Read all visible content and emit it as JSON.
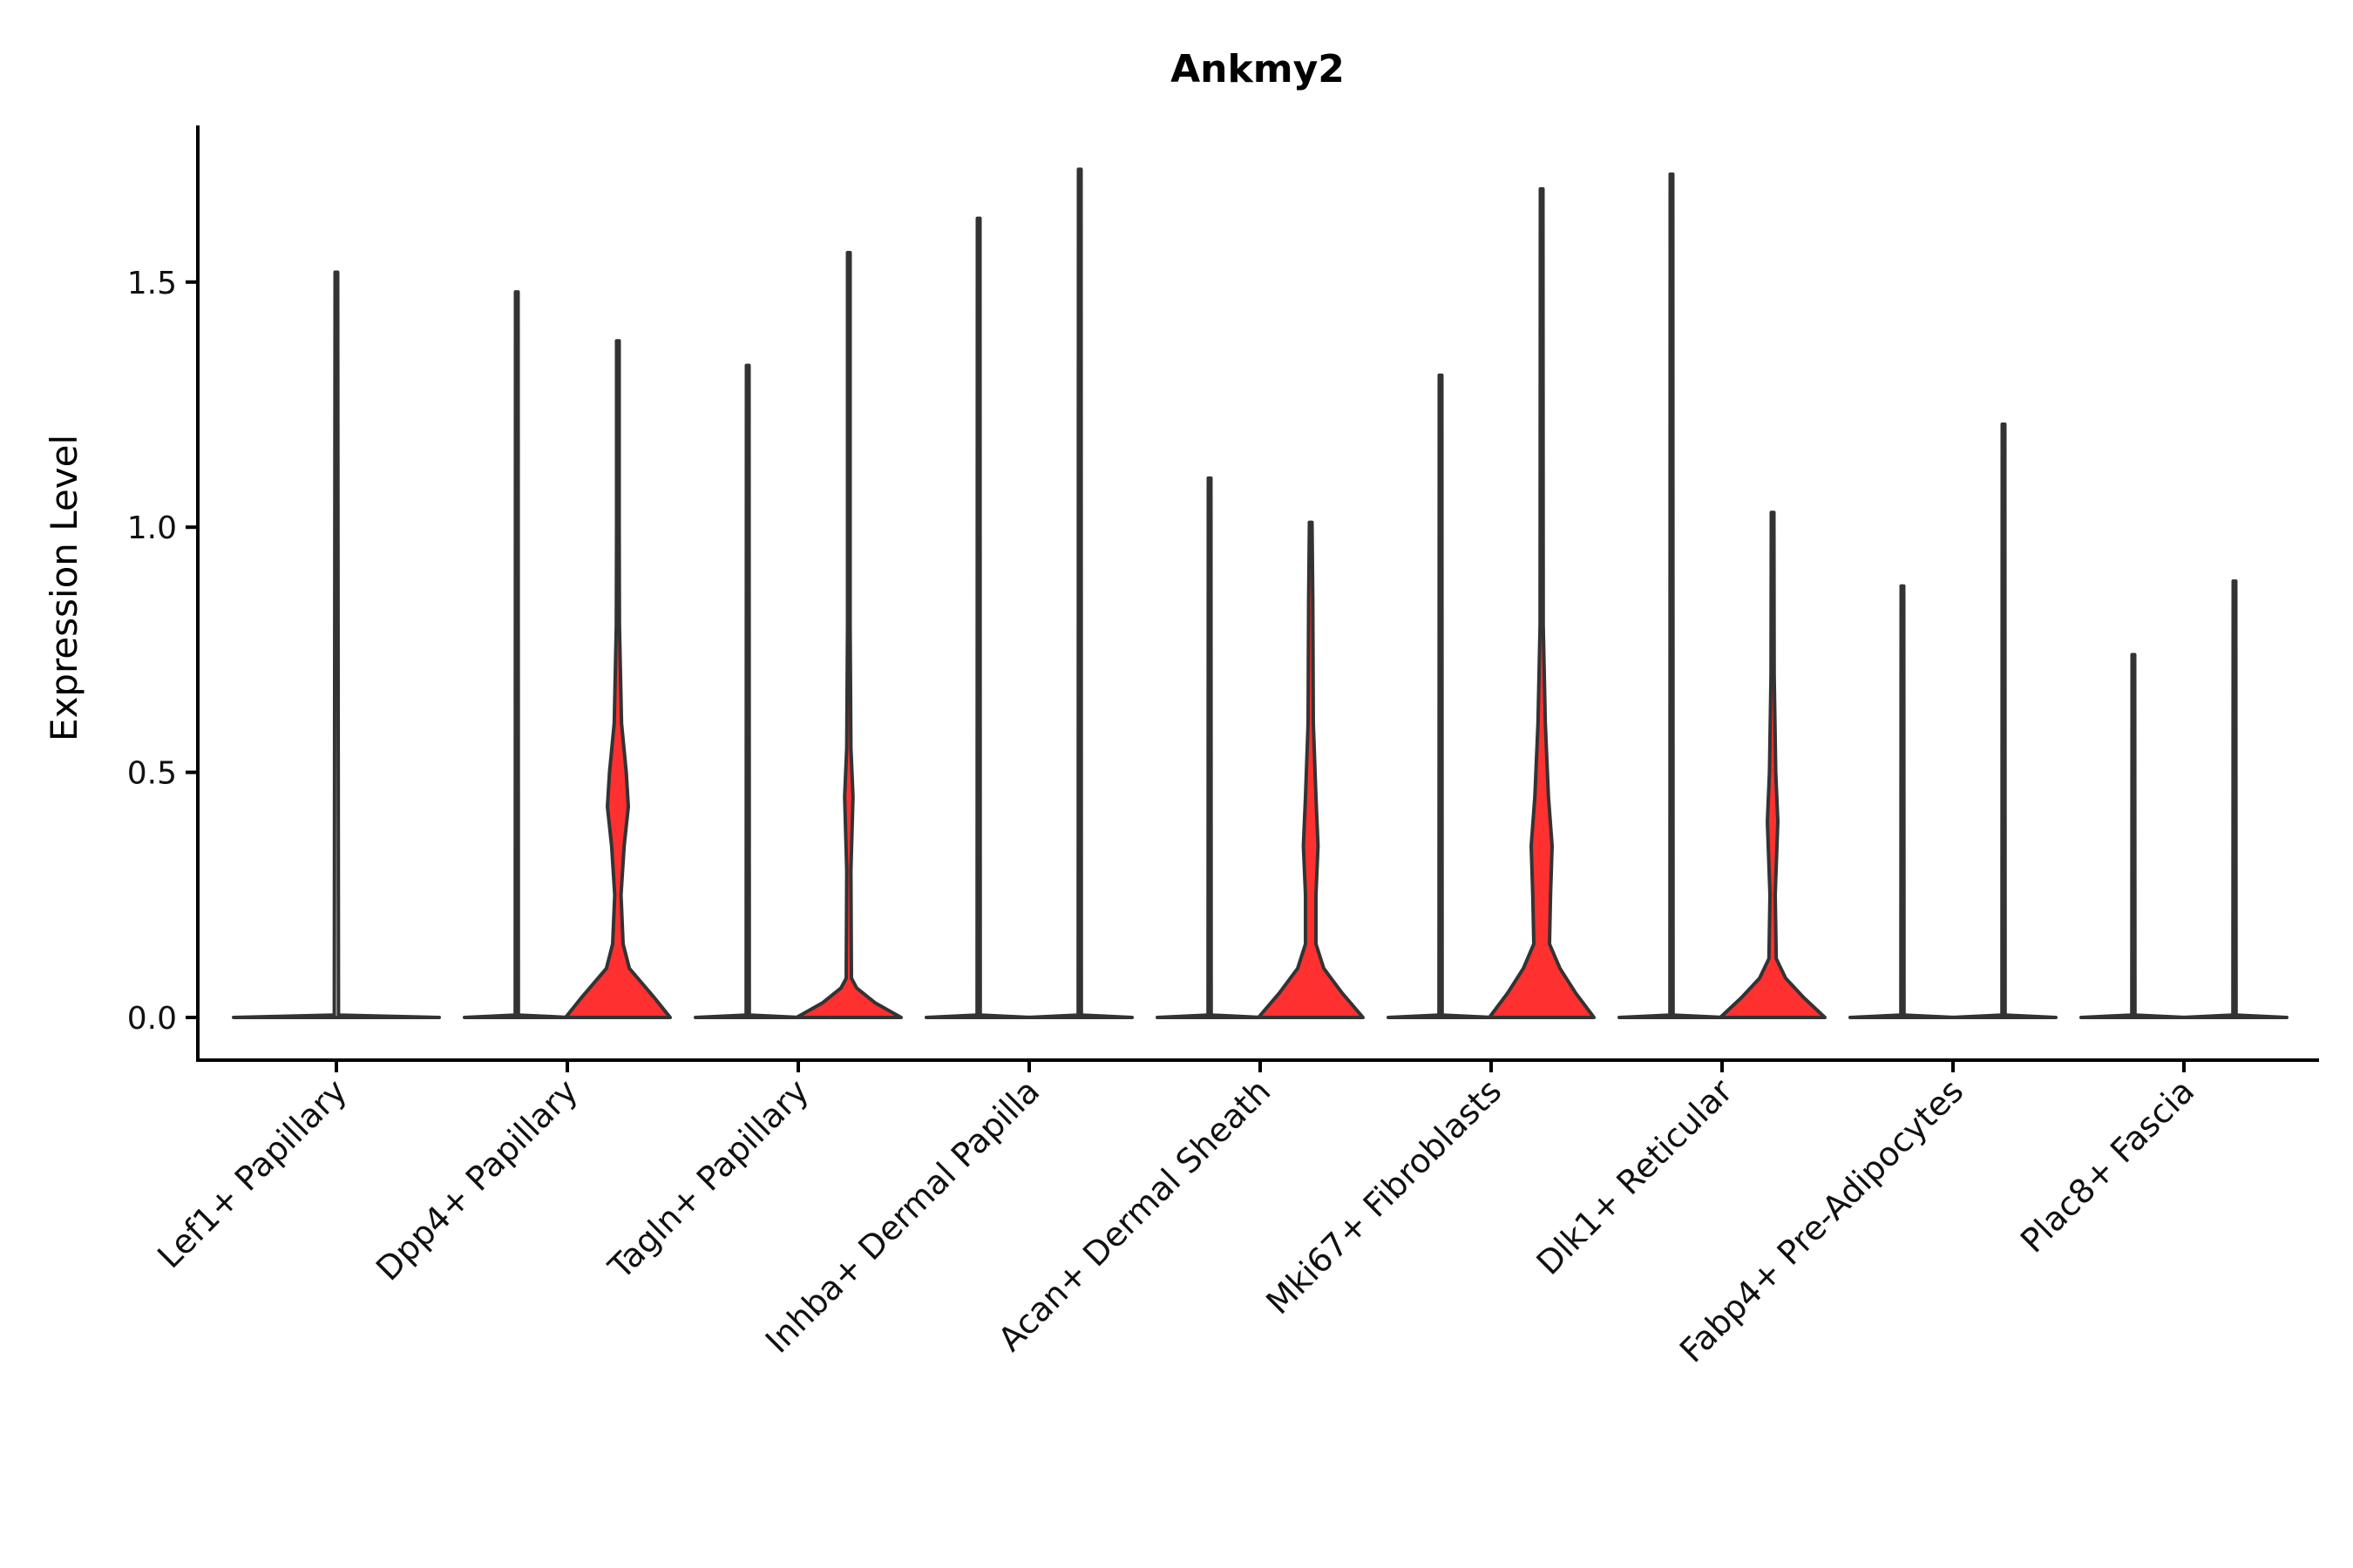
{
  "chart_data": {
    "type": "violin",
    "title": "Ankmy2",
    "xlabel": "",
    "ylabel": "Expression Level",
    "ylim": [
      -0.09,
      1.82
    ],
    "yticks": [
      0.0,
      0.5,
      1.0,
      1.5
    ],
    "ytick_labels": [
      "0.0",
      "0.5",
      "1.0",
      "1.5"
    ],
    "grid": false,
    "legend": "none",
    "colors": {
      "group_a": "#ffffff",
      "group_b": "#ff3030",
      "outline": "#333333"
    },
    "categories": [
      "Lef1+ Papillary",
      "Dpp4+ Papillary",
      "Tagln+ Papillary",
      "Inhba+ Dermal Papilla",
      "Acan+ Dermal Sheath",
      "Mki67+ Fibroblasts",
      "Dlk1+ Reticular",
      "Fabp4+ Pre-Adipocytes",
      "Plac8+ Fascia"
    ],
    "violins": [
      {
        "category": 0,
        "group": "single",
        "max": 1.52,
        "profile": [
          [
            0,
            1
          ],
          [
            0.005,
            0.02
          ],
          [
            1.52,
            0
          ]
        ]
      },
      {
        "category": 1,
        "group": "a",
        "max": 1.48,
        "profile": [
          [
            0,
            1
          ],
          [
            0.005,
            0.03
          ],
          [
            1.48,
            0
          ]
        ]
      },
      {
        "category": 1,
        "group": "b",
        "max": 1.38,
        "profile": [
          [
            0,
            1
          ],
          [
            0.04,
            0.7
          ],
          [
            0.1,
            0.22
          ],
          [
            0.15,
            0.1
          ],
          [
            0.25,
            0.06
          ],
          [
            0.35,
            0.12
          ],
          [
            0.43,
            0.2
          ],
          [
            0.5,
            0.16
          ],
          [
            0.6,
            0.07
          ],
          [
            0.8,
            0.03
          ],
          [
            1.0,
            0.015
          ],
          [
            1.38,
            0
          ]
        ]
      },
      {
        "category": 2,
        "group": "a",
        "max": 1.33,
        "profile": [
          [
            0,
            1
          ],
          [
            0.005,
            0.03
          ],
          [
            1.33,
            0
          ]
        ]
      },
      {
        "category": 2,
        "group": "b",
        "max": 1.56,
        "profile": [
          [
            0,
            1
          ],
          [
            0.03,
            0.5
          ],
          [
            0.06,
            0.15
          ],
          [
            0.08,
            0.05
          ],
          [
            0.3,
            0.04
          ],
          [
            0.45,
            0.08
          ],
          [
            0.55,
            0.04
          ],
          [
            0.8,
            0.02
          ],
          [
            1.56,
            0
          ]
        ]
      },
      {
        "category": 3,
        "group": "a",
        "max": 1.63,
        "profile": [
          [
            0,
            1
          ],
          [
            0.005,
            0.03
          ],
          [
            1.63,
            0
          ]
        ]
      },
      {
        "category": 3,
        "group": "b",
        "max": 1.73,
        "profile": [
          [
            0,
            1
          ],
          [
            0.005,
            0.03
          ],
          [
            1.73,
            0
          ]
        ]
      },
      {
        "category": 4,
        "group": "a",
        "max": 1.1,
        "profile": [
          [
            0,
            1
          ],
          [
            0.005,
            0.03
          ],
          [
            1.1,
            0
          ]
        ]
      },
      {
        "category": 4,
        "group": "b",
        "max": 1.01,
        "profile": [
          [
            0,
            1
          ],
          [
            0.05,
            0.6
          ],
          [
            0.1,
            0.25
          ],
          [
            0.15,
            0.1
          ],
          [
            0.25,
            0.1
          ],
          [
            0.35,
            0.14
          ],
          [
            0.45,
            0.1
          ],
          [
            0.6,
            0.05
          ],
          [
            0.85,
            0.04
          ],
          [
            1.01,
            0
          ]
        ]
      },
      {
        "category": 5,
        "group": "a",
        "max": 1.31,
        "profile": [
          [
            0,
            1
          ],
          [
            0.005,
            0.03
          ],
          [
            1.31,
            0
          ]
        ]
      },
      {
        "category": 5,
        "group": "b",
        "max": 1.69,
        "profile": [
          [
            0,
            1
          ],
          [
            0.05,
            0.65
          ],
          [
            0.1,
            0.35
          ],
          [
            0.15,
            0.15
          ],
          [
            0.25,
            0.17
          ],
          [
            0.35,
            0.2
          ],
          [
            0.45,
            0.13
          ],
          [
            0.6,
            0.07
          ],
          [
            0.8,
            0.03
          ],
          [
            1.69,
            0
          ]
        ]
      },
      {
        "category": 6,
        "group": "a",
        "max": 1.72,
        "profile": [
          [
            0,
            1
          ],
          [
            0.005,
            0.03
          ],
          [
            1.72,
            0
          ]
        ]
      },
      {
        "category": 6,
        "group": "b",
        "max": 1.03,
        "profile": [
          [
            0,
            1
          ],
          [
            0.04,
            0.6
          ],
          [
            0.08,
            0.25
          ],
          [
            0.12,
            0.07
          ],
          [
            0.25,
            0.05
          ],
          [
            0.4,
            0.1
          ],
          [
            0.5,
            0.06
          ],
          [
            0.7,
            0.03
          ],
          [
            1.03,
            0
          ]
        ]
      },
      {
        "category": 7,
        "group": "a",
        "max": 0.88,
        "profile": [
          [
            0,
            1
          ],
          [
            0.005,
            0.03
          ],
          [
            0.88,
            0
          ]
        ]
      },
      {
        "category": 7,
        "group": "b",
        "max": 1.21,
        "profile": [
          [
            0,
            1
          ],
          [
            0.005,
            0.03
          ],
          [
            1.21,
            0
          ]
        ]
      },
      {
        "category": 8,
        "group": "a",
        "max": 0.74,
        "profile": [
          [
            0,
            1
          ],
          [
            0.005,
            0.03
          ],
          [
            0.74,
            0
          ]
        ]
      },
      {
        "category": 8,
        "group": "b",
        "max": 0.89,
        "profile": [
          [
            0,
            1
          ],
          [
            0.005,
            0.03
          ],
          [
            0.89,
            0
          ]
        ]
      }
    ]
  }
}
